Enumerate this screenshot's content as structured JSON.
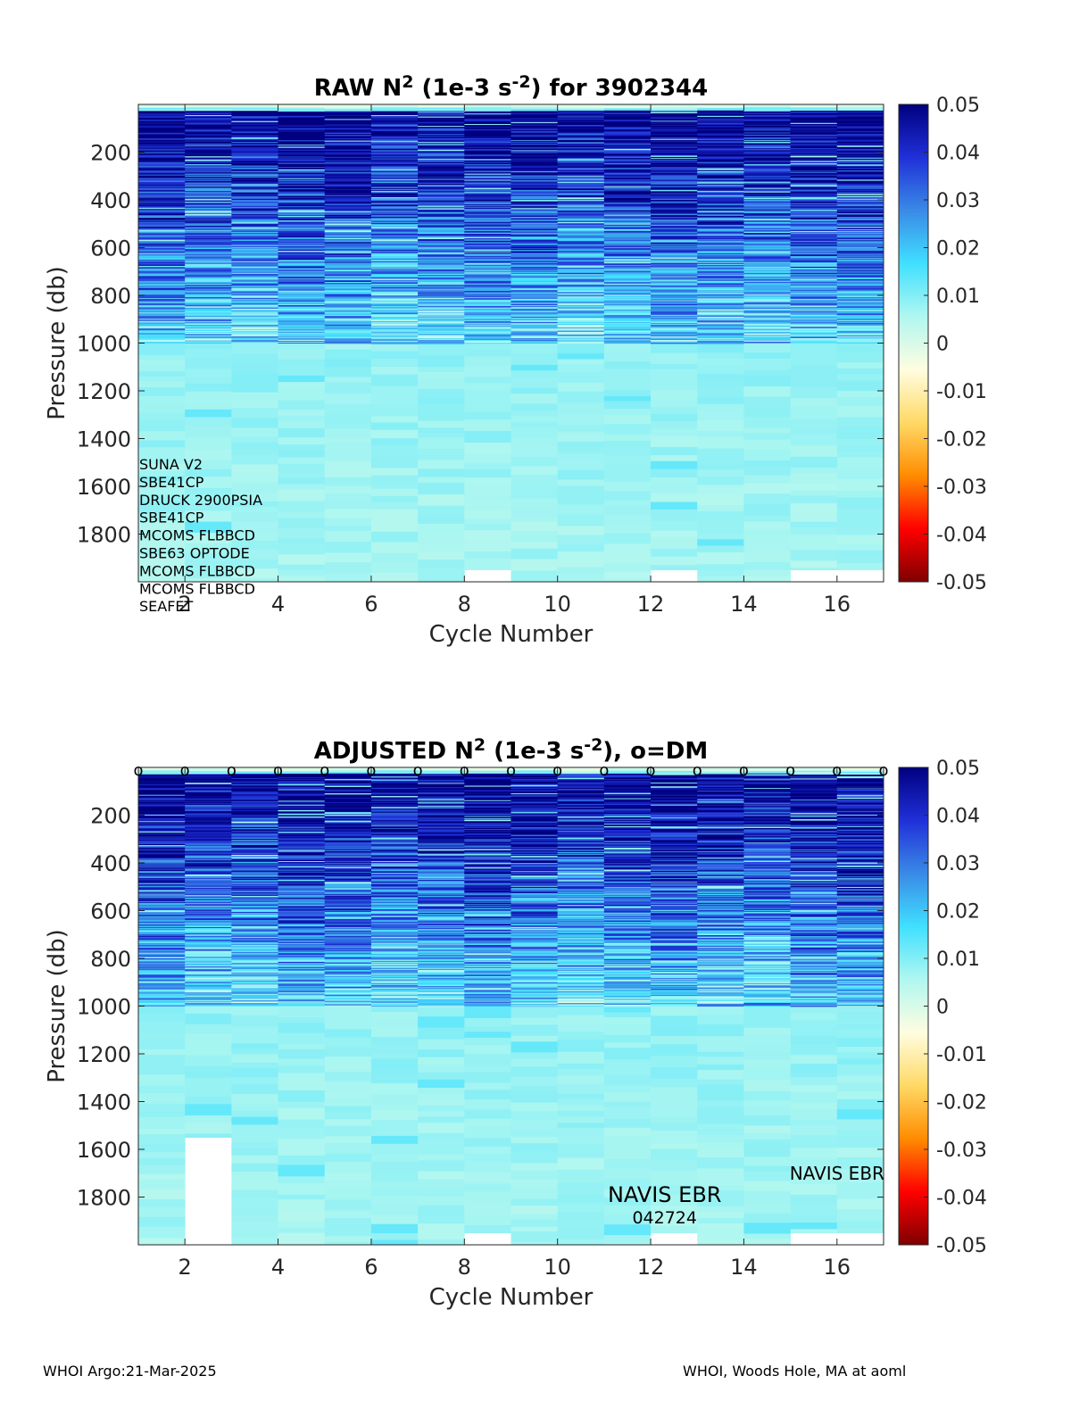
{
  "footer": {
    "left": "WHOI Argo:21-Mar-2025",
    "right": "WHOI, Woods Hole, MA at aoml"
  },
  "chart_data": [
    {
      "type": "heatmap",
      "title_prefix": "RAW N",
      "title_sup": "2",
      "title_mid": " (1e-3 s",
      "title_sup2": "-2",
      "title_suffix": ") for 3902344",
      "xlabel": "Cycle Number",
      "ylabel": "Pressure (db)",
      "xlim": [
        1,
        17
      ],
      "ylim": [
        0,
        2000
      ],
      "y_reversed": true,
      "x_ticks": [
        2,
        4,
        6,
        8,
        10,
        12,
        14,
        16
      ],
      "y_ticks": [
        200,
        400,
        600,
        800,
        1000,
        1200,
        1400,
        1600,
        1800
      ],
      "color_limits": [
        -0.05,
        0.05
      ],
      "colorbar_ticks": [
        "0.05",
        "0.04",
        "0.03",
        "0.02",
        "0.01",
        "0",
        "-0.01",
        "-0.02",
        "-0.03",
        "-0.04",
        "-0.05"
      ],
      "colormap": [
        "#7f0000",
        "#ff0000",
        "#ff8c00",
        "#ffd966",
        "#fffde0",
        "#b0f7f0",
        "#40e0ff",
        "#3a8ae6",
        "#2030d8",
        "#00007f"
      ],
      "cycles": [
        1,
        2,
        3,
        4,
        5,
        6,
        7,
        8,
        9,
        10,
        11,
        12,
        13,
        14,
        15,
        16
      ],
      "missing_bottom_pressure": [
        2000,
        2000,
        2000,
        2000,
        2000,
        2000,
        2000,
        1950,
        2000,
        2000,
        2000,
        1950,
        2000,
        2000,
        1950,
        1950
      ],
      "sensor_labels": [
        "SUNA V2",
        "SBE41CP",
        "DRUCK 2900PSIA",
        "SBE41CP",
        "MCOMS FLBBCD",
        "SBE63 OPTODE",
        "MCOMS FLBBCD",
        "MCOMS FLBBCD",
        "SEAFET"
      ],
      "dm_markers": false
    },
    {
      "type": "heatmap",
      "title_prefix": "ADJUSTED N",
      "title_sup": "2",
      "title_mid": " (1e-3 s",
      "title_sup2": "-2",
      "title_suffix": "), o=DM",
      "xlabel": "Cycle Number",
      "ylabel": "Pressure (db)",
      "xlim": [
        1,
        17
      ],
      "ylim": [
        0,
        2000
      ],
      "y_reversed": true,
      "x_ticks": [
        2,
        4,
        6,
        8,
        10,
        12,
        14,
        16
      ],
      "y_ticks": [
        200,
        400,
        600,
        800,
        1000,
        1200,
        1400,
        1600,
        1800
      ],
      "color_limits": [
        -0.05,
        0.05
      ],
      "colorbar_ticks": [
        "0.05",
        "0.04",
        "0.03",
        "0.02",
        "0.01",
        "0",
        "-0.01",
        "-0.02",
        "-0.03",
        "-0.04",
        "-0.05"
      ],
      "colormap": [
        "#7f0000",
        "#ff0000",
        "#ff8c00",
        "#ffd966",
        "#fffde0",
        "#b0f7f0",
        "#40e0ff",
        "#3a8ae6",
        "#2030d8",
        "#00007f"
      ],
      "cycles": [
        1,
        2,
        3,
        4,
        5,
        6,
        7,
        8,
        9,
        10,
        11,
        12,
        13,
        14,
        15,
        16
      ],
      "missing_bottom_pressure": [
        2000,
        1550,
        2000,
        2000,
        2000,
        2000,
        2000,
        1950,
        2000,
        2000,
        2000,
        1950,
        2000,
        2000,
        1950,
        1950
      ],
      "dm_marker_symbol": "o",
      "dm_markers": true,
      "dm_cycles": [
        1,
        2,
        3,
        4,
        5,
        6,
        7,
        8,
        9,
        10,
        11,
        12,
        13,
        14,
        15,
        16,
        17
      ],
      "annotations": [
        {
          "text": "NAVIS EBR",
          "x": 12.3,
          "y": 1790,
          "size": "large"
        },
        {
          "text": "042724",
          "x": 12.3,
          "y": 1885,
          "size": "small"
        },
        {
          "text": "NAVIS EBR",
          "x": 16.0,
          "y": 1700,
          "size": "medium"
        }
      ]
    }
  ]
}
